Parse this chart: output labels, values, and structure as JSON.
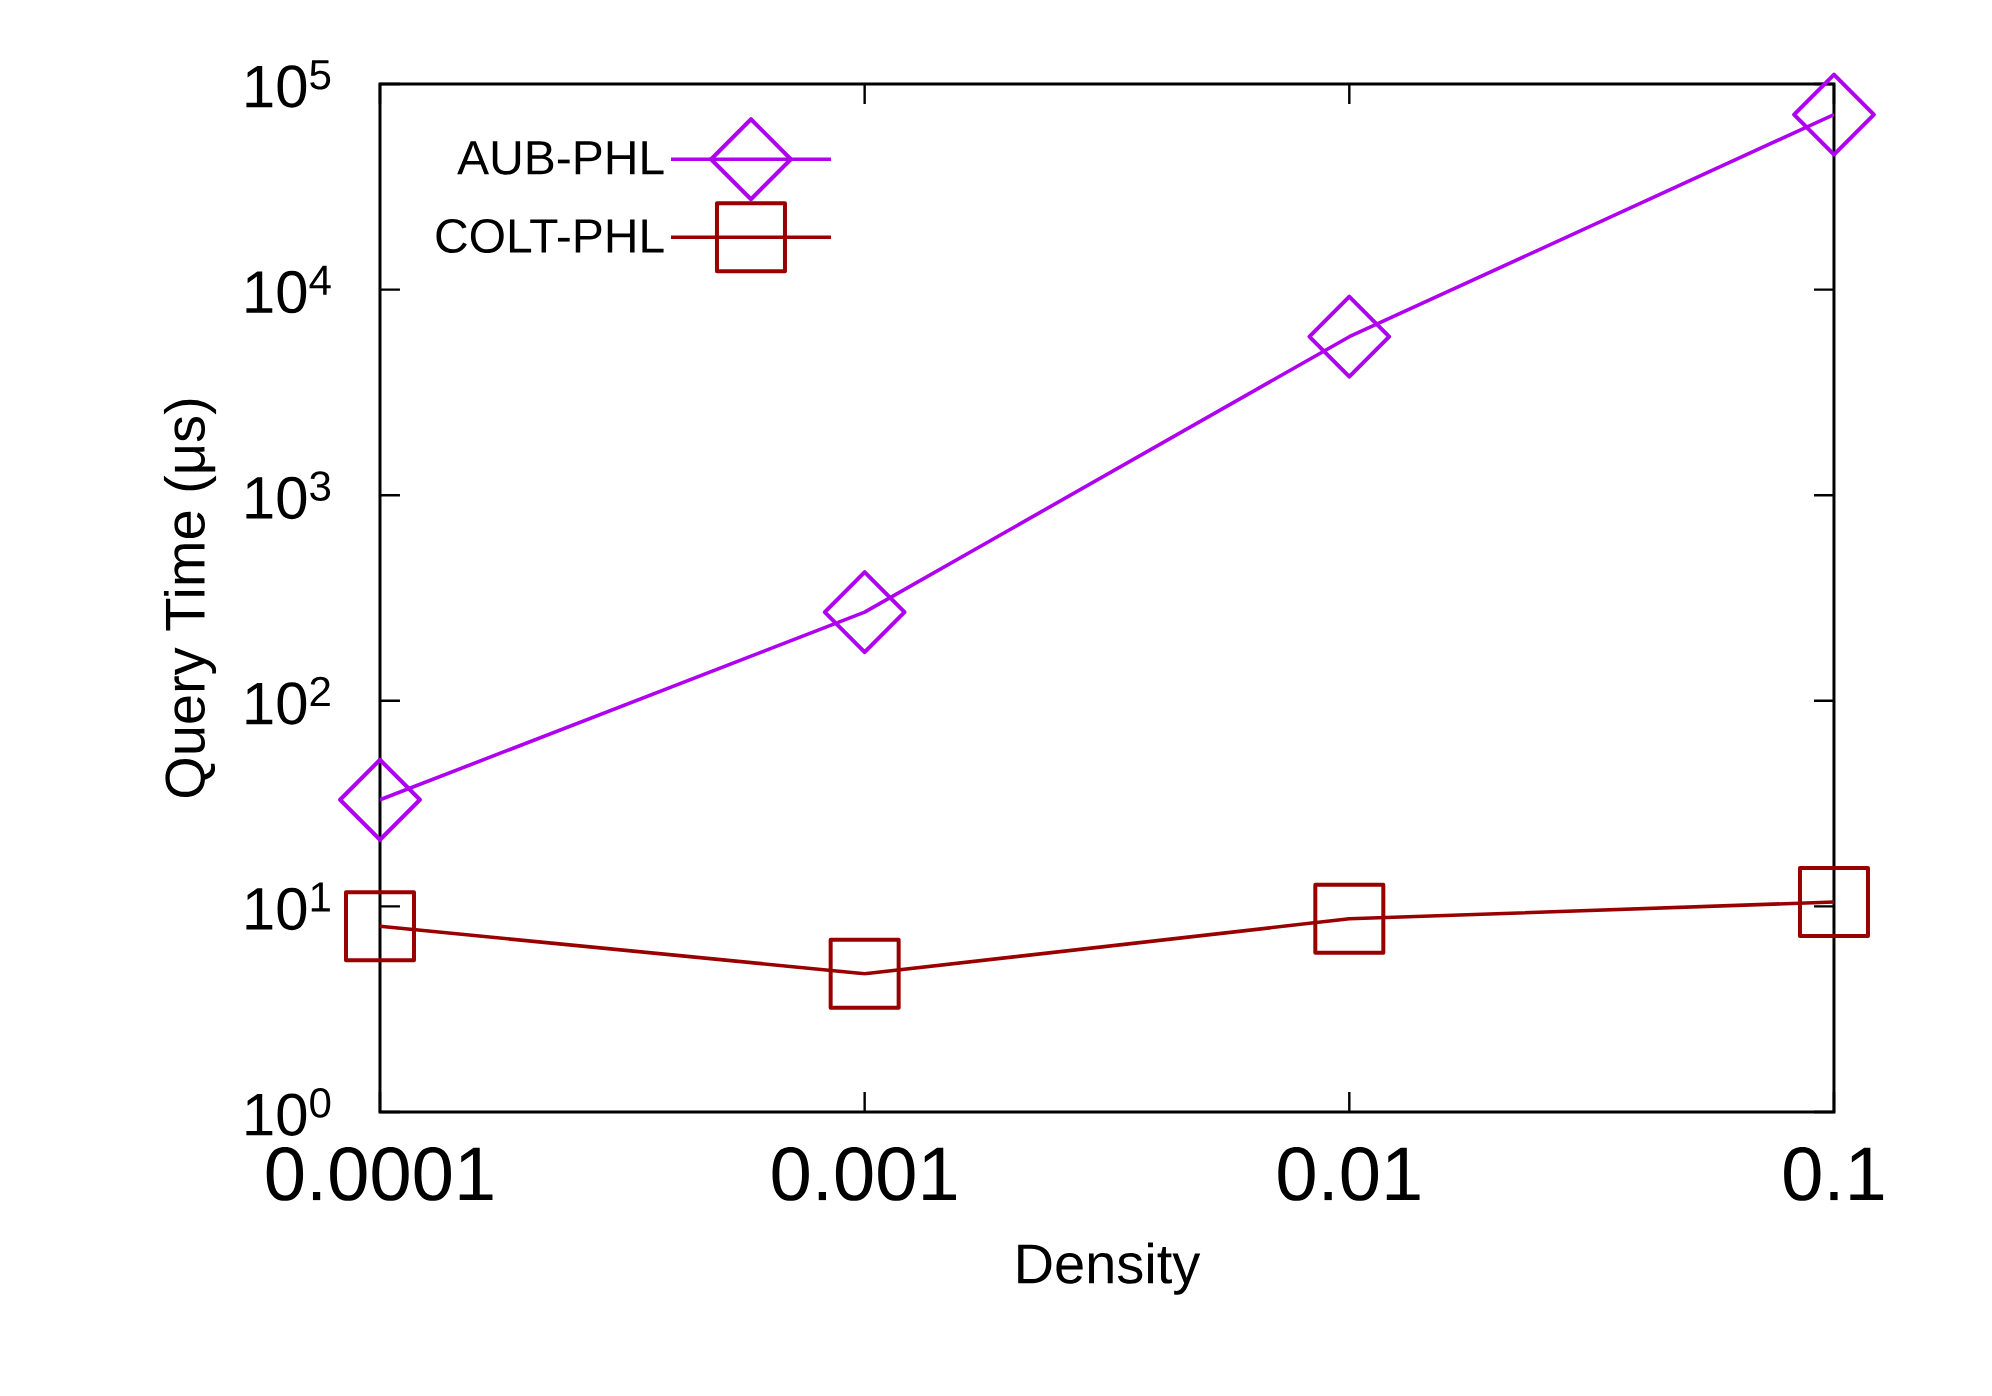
{
  "chart_data": {
    "type": "line",
    "xlabel": "Density",
    "ylabel": "Query Time (μs)",
    "x": [
      0.0001,
      0.001,
      0.01,
      0.1
    ],
    "series": [
      {
        "name": "AUB-PHL",
        "color": "#b000f0",
        "marker": "diamond",
        "values": [
          33,
          270,
          5900,
          71000
        ]
      },
      {
        "name": "COLT-PHL",
        "color": "#990000",
        "marker": "square",
        "values": [
          8,
          4.7,
          8.7,
          10.5
        ]
      }
    ],
    "log": "xy",
    "xlim": [
      0.0001,
      0.1
    ],
    "ylim": [
      1,
      100000
    ],
    "xticks": [
      0.0001,
      0.001,
      0.01,
      0.1
    ],
    "yticks": [
      {
        "value": 1,
        "label": "10$^{0}$"
      },
      {
        "value": 10,
        "label": "10$^{1}$"
      },
      {
        "value": 100,
        "label": "10$^{2}$"
      },
      {
        "value": 1000,
        "label": "10$^{3}$"
      },
      {
        "value": 10000,
        "label": "10$^{4}$"
      },
      {
        "value": 100000,
        "label": "10$^{5}$"
      }
    ],
    "legend": "top left",
    "grid": false,
    "line_style": "solid"
  }
}
